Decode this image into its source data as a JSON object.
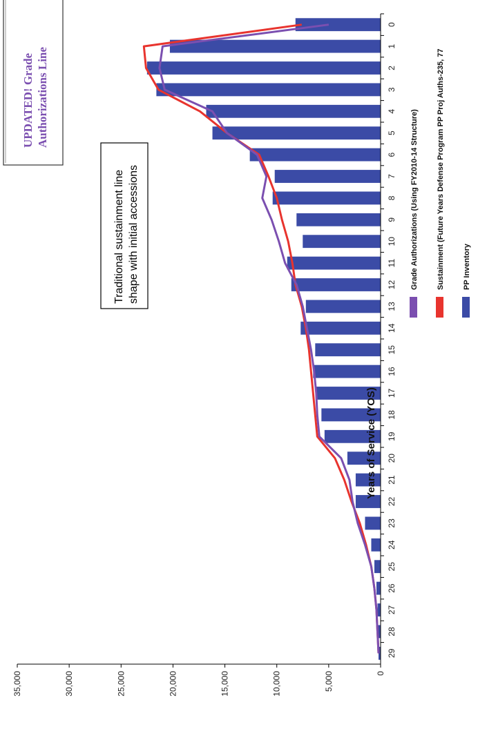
{
  "chart_data": {
    "type": "bar",
    "orientation": "rotated-90-ccw",
    "xlabel": "Years of Service (YOS)",
    "ylabel": "",
    "categories": [
      "0",
      "1",
      "2",
      "3",
      "4",
      "5",
      "6",
      "7",
      "8",
      "9",
      "10",
      "11",
      "12",
      "13",
      "14",
      "15",
      "16",
      "17",
      "18",
      "19",
      "20",
      "21",
      "22",
      "23",
      "24",
      "25",
      "26",
      "27",
      "28",
      "29"
    ],
    "y_ticks": [
      "0",
      "5,000",
      "10,000",
      "15,000",
      "20,000",
      "25,000",
      "30,000",
      "35,000"
    ],
    "ylim": [
      0,
      35000
    ],
    "series": [
      {
        "name": "PP Inventory",
        "kind": "bar",
        "color": "#3b4ba6",
        "values": [
          8200,
          20300,
          22500,
          21600,
          16800,
          16200,
          12600,
          10200,
          10400,
          8100,
          7500,
          9000,
          8600,
          7200,
          7700,
          6300,
          6500,
          6200,
          5700,
          5400,
          3200,
          2400,
          2400,
          1500,
          900,
          600,
          400,
          300,
          250,
          200
        ]
      },
      {
        "name": "Sustainment (Future Years Defense Program PP Proj Auths-235, 77",
        "kind": "line",
        "color": "#e8342e",
        "values": [
          7600,
          22800,
          22600,
          21400,
          17400,
          14800,
          11700,
          10800,
          10000,
          9500,
          8900,
          8500,
          8200,
          7600,
          7200,
          6900,
          6700,
          6500,
          6300,
          6100,
          4400,
          3500,
          2800,
          2000,
          1400,
          900,
          600,
          400,
          300,
          200
        ]
      },
      {
        "name": "Grade Authorizations (Using FY2010-14 Structure)",
        "kind": "line",
        "color": "#7b4fb0",
        "values": [
          5000,
          21000,
          21300,
          20800,
          16200,
          14800,
          11900,
          11000,
          11400,
          10500,
          9800,
          9200,
          8100,
          7500,
          7100,
          6700,
          6400,
          6200,
          6100,
          5900,
          3800,
          3000,
          2700,
          2200,
          1500,
          900,
          600,
          400,
          300,
          200
        ]
      }
    ],
    "annotations": {
      "callout": [
        "Traditional sustainment line",
        "shape with initial accessions"
      ],
      "updated_box": [
        "UPDATED!  Grade",
        "Authorizations Line"
      ]
    },
    "legend_placement": "bottom",
    "grid": false
  }
}
